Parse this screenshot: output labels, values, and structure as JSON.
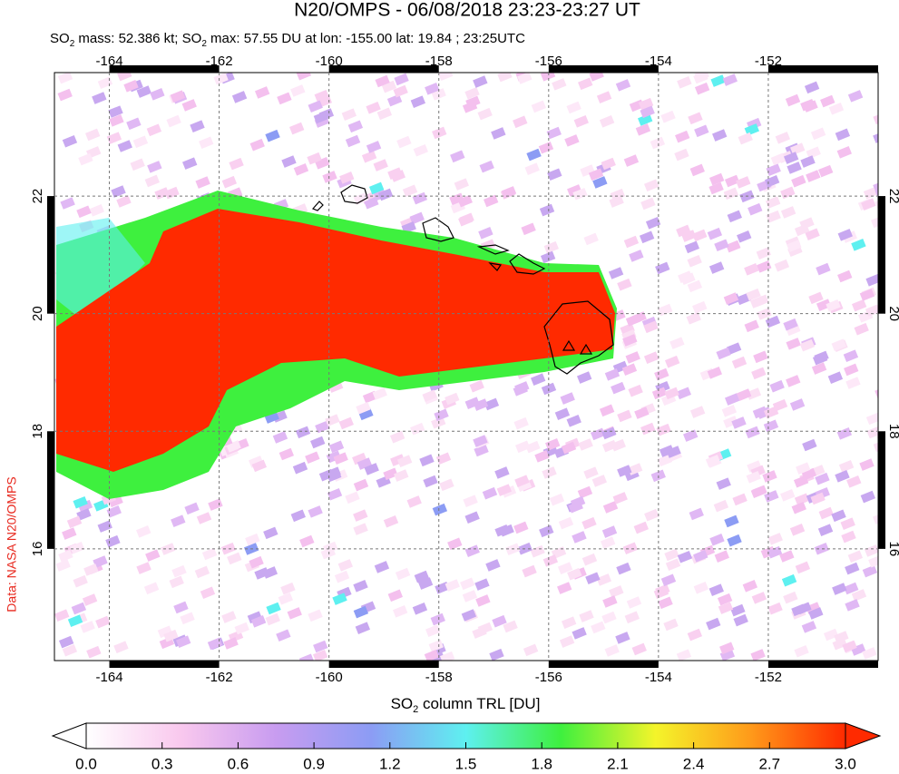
{
  "title": "N20/OMPS - 06/08/2018 23:23-23:27 UT",
  "subtitle": [
    "SO",
    "2",
    " mass: 52.386 kt; SO",
    "2",
    " max: 57.55 DU at lon: -155.00 lat: 19.84 ; 23:25UTC"
  ],
  "credit": "Data: NASA N20/OMPS",
  "map": {
    "xlim": [
      -165,
      -150
    ],
    "ylim": [
      14.1,
      24.1
    ],
    "xticks": [
      -164,
      -162,
      -160,
      -158,
      -156,
      -154,
      -152
    ],
    "yticks": [
      16,
      18,
      20,
      22
    ],
    "grid": true
  },
  "colorbar": {
    "label": [
      "SO",
      "2",
      " column TRL [DU]"
    ],
    "range": [
      0,
      3
    ],
    "colors": [
      "#ffffff",
      "#f9c8ee",
      "#c89cf0",
      "#8c9cf4",
      "#5ef0f0",
      "#3ef03e",
      "#f4f42a",
      "#ff9a1a",
      "#ff2a00"
    ],
    "ticks": [
      {
        "value": 0,
        "label": "0.0"
      },
      {
        "value": 0.3,
        "label": "0.3"
      },
      {
        "value": 0.6,
        "label": "0.6"
      },
      {
        "value": 0.9,
        "label": "0.9"
      },
      {
        "value": 1.2,
        "label": "1.2"
      },
      {
        "value": 1.5,
        "label": "1.5"
      },
      {
        "value": 1.8,
        "label": "1.8"
      },
      {
        "value": 2.1,
        "label": "2.1"
      },
      {
        "value": 2.4,
        "label": "2.4"
      },
      {
        "value": 2.7,
        "label": "2.7"
      },
      {
        "value": 3,
        "label": "3.0"
      }
    ]
  }
}
